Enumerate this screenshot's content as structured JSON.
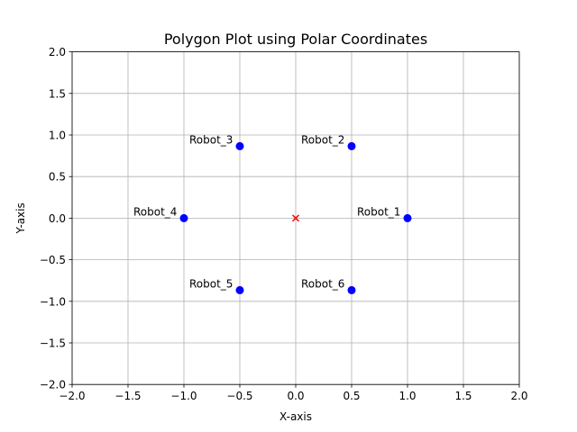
{
  "chart_data": {
    "type": "scatter",
    "title": "Polygon Plot using Polar Coordinates",
    "xlabel": "X-axis",
    "ylabel": "Y-axis",
    "xlim": [
      -2.0,
      2.0
    ],
    "ylim": [
      -2.0,
      2.0
    ],
    "xticks": [
      -2.0,
      -1.5,
      -1.0,
      -0.5,
      0.0,
      0.5,
      1.0,
      1.5,
      2.0
    ],
    "yticks": [
      -2.0,
      -1.5,
      -1.0,
      -0.5,
      0.0,
      0.5,
      1.0,
      1.5,
      2.0
    ],
    "xtick_labels": [
      "−2.0",
      "−1.5",
      "−1.0",
      "−0.5",
      "0.0",
      "0.5",
      "1.0",
      "1.5",
      "2.0"
    ],
    "ytick_labels": [
      "−2.0",
      "−1.5",
      "−1.0",
      "−0.5",
      "0.0",
      "0.5",
      "1.0",
      "1.5",
      "2.0"
    ],
    "grid": true,
    "points": [
      {
        "label": "Robot_1",
        "x": 1.0,
        "y": 0.0
      },
      {
        "label": "Robot_2",
        "x": 0.5,
        "y": 0.866
      },
      {
        "label": "Robot_3",
        "x": -0.5,
        "y": 0.866
      },
      {
        "label": "Robot_4",
        "x": -1.0,
        "y": 0.0
      },
      {
        "label": "Robot_5",
        "x": -0.5,
        "y": -0.866
      },
      {
        "label": "Robot_6",
        "x": 0.5,
        "y": -0.866
      }
    ],
    "center": {
      "x": 0.0,
      "y": 0.0,
      "marker": "x"
    },
    "colors": {
      "points": "#0000ff",
      "center": "#ff0000"
    }
  }
}
